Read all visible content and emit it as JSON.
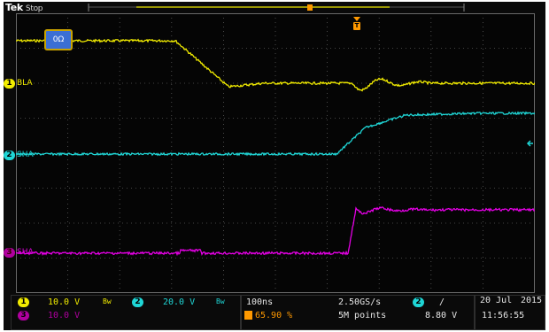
{
  "header": {
    "brand": "Tek",
    "run_state": "Stop"
  },
  "screen": {
    "impedance_badge": "0Ω",
    "trigger_marker": "T",
    "channels": [
      {
        "number": "1",
        "label": "BLA",
        "color": "#f2ec00"
      },
      {
        "number": "2",
        "label": "SHA",
        "color": "#1fd6d6"
      },
      {
        "number": "3",
        "label": "SHA",
        "color": "#e600e6"
      }
    ]
  },
  "status": {
    "ch1": {
      "number": "1",
      "scale": "10.0 V",
      "coupling": "Bw"
    },
    "ch2": {
      "number": "2",
      "scale": "20.0 V",
      "coupling": "Bw"
    },
    "ch3": {
      "number": "3",
      "scale": "10.0 V"
    },
    "timebase": "100ns",
    "position": "65.90 %",
    "sample_rate": "2.50GS/s",
    "record_length": "5M points",
    "trigger_channel": "2",
    "trigger_slope": "/",
    "trigger_level": "8.80 V",
    "date": "20 Jul",
    "year": "2015",
    "time": "11:56:55"
  },
  "colors": {
    "ch1": "#f2ec00",
    "ch2": "#1fd6d6",
    "ch3": "#e600e6",
    "trigger": "#ff9900",
    "badge": "#3b6fd4"
  }
}
